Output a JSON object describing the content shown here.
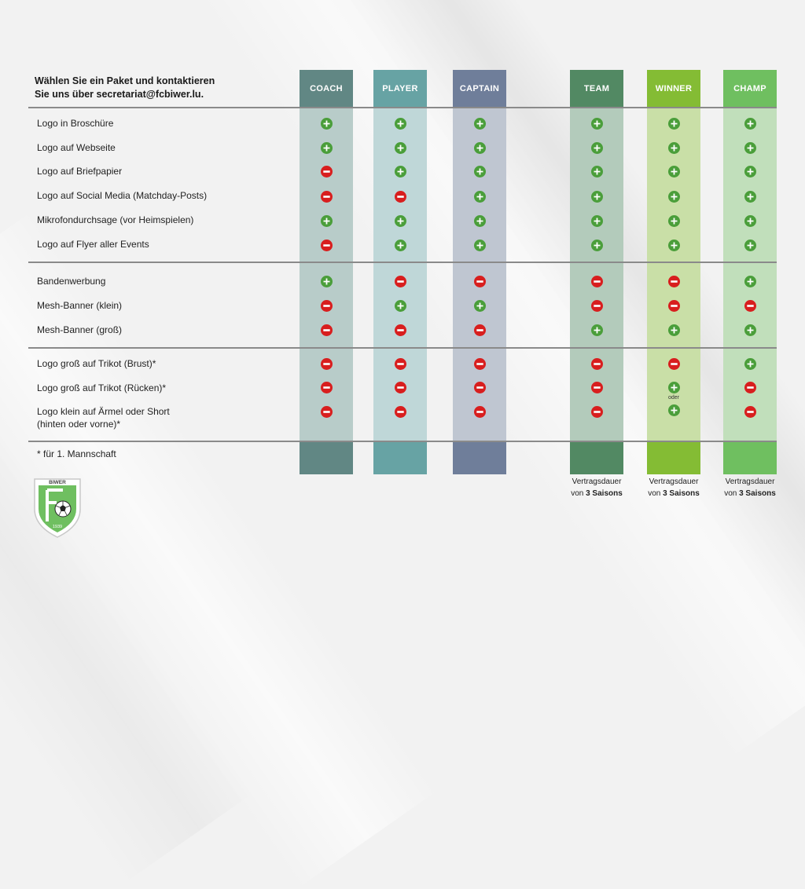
{
  "intro": {
    "line1": "Wählen Sie ein Paket und kontaktieren",
    "line2": "Sie uns über secretariat@fcbiwer.lu."
  },
  "packages": [
    {
      "id": "coach",
      "label": "COACH",
      "header_color": "#618784",
      "body_color": "#b8ccc9",
      "foot_color": "#618784"
    },
    {
      "id": "player",
      "label": "PLAYER",
      "header_color": "#67a3a4",
      "body_color": "#bfd7d8",
      "foot_color": "#67a3a4"
    },
    {
      "id": "captain",
      "label": "CAPTAIN",
      "header_color": "#6f7e9a",
      "body_color": "#bfc6d1",
      "foot_color": "#6f7e9a"
    },
    {
      "id": "team",
      "label": "TEAM",
      "header_color": "#528963",
      "body_color": "#b3cbbb",
      "foot_color": "#528963"
    },
    {
      "id": "winner",
      "label": "WINNER",
      "header_color": "#84bc34",
      "body_color": "#c9dfa7",
      "foot_color": "#84bc34"
    },
    {
      "id": "champ",
      "label": "CHAMP",
      "header_color": "#6fbf60",
      "body_color": "#c1dfbb",
      "foot_color": "#6fbf60"
    }
  ],
  "features": [
    {
      "label": "Logo in Broschüre",
      "values": [
        "plus",
        "plus",
        "plus",
        "plus",
        "plus",
        "plus"
      ]
    },
    {
      "label": "Logo auf Webseite",
      "values": [
        "plus",
        "plus",
        "plus",
        "plus",
        "plus",
        "plus"
      ]
    },
    {
      "label": "Logo auf Briefpapier",
      "values": [
        "minus",
        "plus",
        "plus",
        "plus",
        "plus",
        "plus"
      ]
    },
    {
      "label": "Logo auf Social Media (Matchday-Posts)",
      "values": [
        "minus",
        "minus",
        "plus",
        "plus",
        "plus",
        "plus"
      ]
    },
    {
      "label": "Mikrofondurchsage (vor Heimspielen)",
      "values": [
        "plus",
        "plus",
        "plus",
        "plus",
        "plus",
        "plus"
      ]
    },
    {
      "label": "Logo auf Flyer aller Events",
      "values": [
        "minus",
        "plus",
        "plus",
        "plus",
        "plus",
        "plus"
      ]
    },
    {
      "label": "Bandenwerbung",
      "values": [
        "plus",
        "minus",
        "minus",
        "minus",
        "minus",
        "plus"
      ]
    },
    {
      "label": "Mesh-Banner (klein)",
      "values": [
        "minus",
        "plus",
        "plus",
        "minus",
        "minus",
        "minus"
      ]
    },
    {
      "label": "Mesh-Banner (groß)",
      "values": [
        "minus",
        "minus",
        "minus",
        "plus",
        "plus",
        "plus"
      ]
    },
    {
      "label": "Logo groß auf Trikot (Brust)*",
      "values": [
        "minus",
        "minus",
        "minus",
        "minus",
        "minus",
        "plus"
      ]
    },
    {
      "label": "Logo groß auf Trikot (Rücken)*",
      "values": [
        "minus",
        "minus",
        "minus",
        "minus",
        "plus",
        "minus"
      ]
    },
    {
      "label": "Logo klein auf Ärmel oder Short",
      "label2": "(hinten oder vorne)*",
      "values": [
        "minus",
        "minus",
        "minus",
        "minus",
        "plus",
        "minus"
      ]
    }
  ],
  "oder_label": "oder",
  "footnote": "* für 1. Mannschaft",
  "duration": {
    "line1": "Vertragsdauer",
    "prefix": "von ",
    "bold": "3 Saisons"
  },
  "logo": {
    "club_name": "BIWER",
    "letters": "FC",
    "year": "1939"
  }
}
